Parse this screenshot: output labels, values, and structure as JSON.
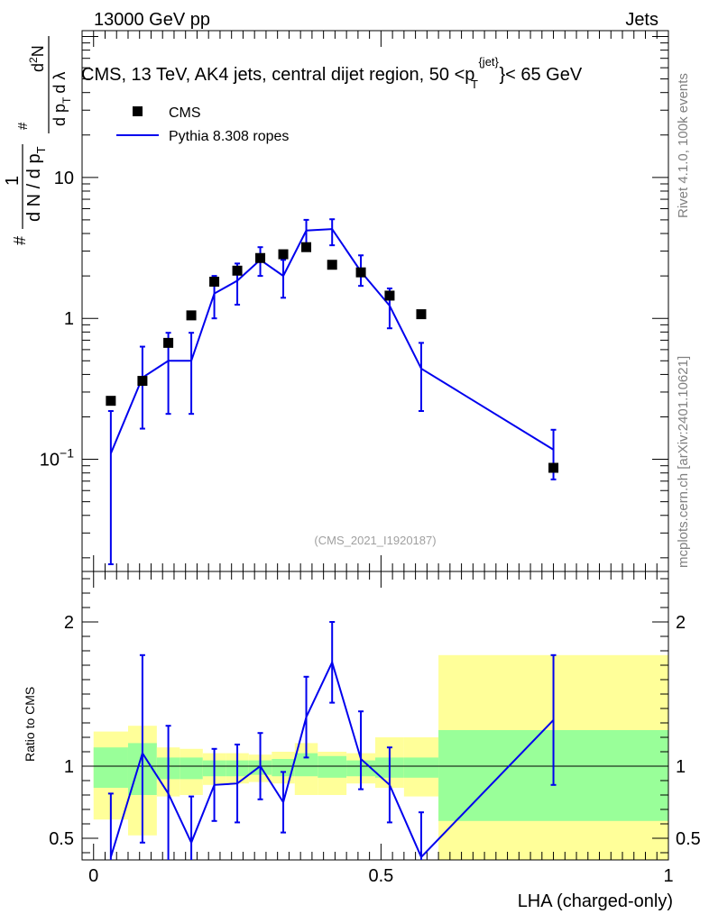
{
  "header": {
    "left": "13000 GeV pp",
    "right": "Jets"
  },
  "side_labels": {
    "rivet": "Rivet 4.1.0,  100k events",
    "mcplots": "mcplots.cern.ch [arXiv:2401.10621]"
  },
  "chart_data": [
    {
      "type": "scatter",
      "title_parts": {
        "prefix": "CMS, 13 TeV, AK4 jets, central dijet region, 50 <p",
        "sup": "{jet}",
        "sub": "T",
        "suffix": "}< 65 GeV"
      },
      "analysis_id": "(CMS_2021_I1920187)",
      "yscale": "log",
      "ylim": [
        0.016,
        110
      ],
      "xlim": [
        -0.02,
        1.0
      ],
      "yticks": [
        {
          "value": 0.1,
          "label": "10",
          "exp": "−1"
        },
        {
          "value": 1,
          "label": "1",
          "exp": ""
        },
        {
          "value": 10,
          "label": "10",
          "exp": ""
        }
      ],
      "ylabel": {
        "hash": "#",
        "frac1_num": "1",
        "frac1_den": "d N / d p",
        "frac1_den_sub": "T",
        "frac2_num_hash": "#",
        "frac2_num": "d",
        "frac2_num_sup": "2",
        "frac2_num_tail": "N",
        "frac2_den": "d p",
        "frac2_den_sub": "T",
        "frac2_den_tail": "d λ"
      },
      "legend": [
        {
          "name": "CMS",
          "marker": "square",
          "color": "#000000"
        },
        {
          "name": "Pythia 8.308 ropes",
          "marker": "line",
          "color": "#0000ee"
        }
      ],
      "series": [
        {
          "name": "CMS",
          "x": [
            0.03,
            0.085,
            0.13,
            0.17,
            0.21,
            0.25,
            0.29,
            0.33,
            0.37,
            0.415,
            0.465,
            0.515,
            0.57,
            0.8
          ],
          "y": [
            0.26,
            0.36,
            0.67,
            1.05,
            1.82,
            2.18,
            2.68,
            2.85,
            3.2,
            2.4,
            2.12,
            1.45,
            1.07,
            0.087
          ]
        },
        {
          "name": "Pythia 8.308 ropes",
          "x": [
            0.03,
            0.085,
            0.13,
            0.17,
            0.21,
            0.25,
            0.29,
            0.33,
            0.37,
            0.415,
            0.465,
            0.515,
            0.57,
            0.8
          ],
          "y": [
            0.11,
            0.38,
            0.5,
            0.5,
            1.5,
            1.85,
            2.6,
            2.0,
            4.2,
            4.3,
            2.15,
            1.23,
            0.44,
            0.117
          ],
          "yerr_lo": [
            0.092,
            0.215,
            0.29,
            0.29,
            0.5,
            0.6,
            0.6,
            0.6,
            1.0,
            1.0,
            0.45,
            0.38,
            0.22,
            0.045
          ],
          "yerr_hi": [
            0.11,
            0.25,
            0.29,
            0.29,
            0.5,
            0.6,
            0.6,
            0.6,
            0.8,
            0.75,
            0.65,
            0.4,
            0.23,
            0.045
          ]
        }
      ]
    },
    {
      "type": "line",
      "ylabel": "Ratio to CMS",
      "xlabel": "LHA (charged-only)",
      "ylim": [
        0.35,
        2.35
      ],
      "xlim": [
        -0.02,
        1.0
      ],
      "xticks": [
        {
          "value": 0,
          "label": "0"
        },
        {
          "value": 0.5,
          "label": "0.5"
        },
        {
          "value": 1,
          "label": "1"
        }
      ],
      "yticks": [
        {
          "value": 0.5,
          "label": "0.5"
        },
        {
          "value": 1,
          "label": "1"
        },
        {
          "value": 2,
          "label": "2"
        }
      ],
      "reference_line": 1,
      "bands": [
        {
          "x0": 0.0,
          "x1": 0.06,
          "stat": [
            0.85,
            1.13
          ],
          "total": [
            0.63,
            1.24
          ]
        },
        {
          "x0": 0.06,
          "x1": 0.11,
          "stat": [
            0.8,
            1.16
          ],
          "total": [
            0.52,
            1.28
          ]
        },
        {
          "x0": 0.11,
          "x1": 0.15,
          "stat": [
            0.91,
            1.06
          ],
          "total": [
            0.79,
            1.13
          ]
        },
        {
          "x0": 0.15,
          "x1": 0.19,
          "stat": [
            0.91,
            1.06
          ],
          "total": [
            0.8,
            1.12
          ]
        },
        {
          "x0": 0.19,
          "x1": 0.23,
          "stat": [
            0.93,
            1.04
          ],
          "total": [
            0.87,
            1.09
          ]
        },
        {
          "x0": 0.23,
          "x1": 0.27,
          "stat": [
            0.93,
            1.04
          ],
          "total": [
            0.88,
            1.09
          ]
        },
        {
          "x0": 0.27,
          "x1": 0.31,
          "stat": [
            0.94,
            1.04
          ],
          "total": [
            0.89,
            1.08
          ]
        },
        {
          "x0": 0.31,
          "x1": 0.35,
          "stat": [
            0.93,
            1.05
          ],
          "total": [
            0.88,
            1.1
          ]
        },
        {
          "x0": 0.35,
          "x1": 0.39,
          "stat": [
            0.93,
            1.09
          ],
          "total": [
            0.8,
            1.16
          ]
        },
        {
          "x0": 0.39,
          "x1": 0.44,
          "stat": [
            0.92,
            1.07
          ],
          "total": [
            0.8,
            1.1
          ]
        },
        {
          "x0": 0.44,
          "x1": 0.49,
          "stat": [
            0.93,
            1.04
          ],
          "total": [
            0.88,
            1.09
          ]
        },
        {
          "x0": 0.49,
          "x1": 0.54,
          "stat": [
            0.92,
            1.06
          ],
          "total": [
            0.85,
            1.2
          ]
        },
        {
          "x0": 0.54,
          "x1": 0.6,
          "stat": [
            0.92,
            1.06
          ],
          "total": [
            0.79,
            1.2
          ]
        },
        {
          "x0": 0.6,
          "x1": 1.0,
          "stat": [
            0.62,
            1.25
          ],
          "total": [
            0.35,
            1.77
          ]
        }
      ],
      "series": [
        {
          "name": "Pythia 8.308 ropes / CMS",
          "x": [
            0.03,
            0.085,
            0.13,
            0.17,
            0.21,
            0.25,
            0.29,
            0.33,
            0.37,
            0.415,
            0.465,
            0.515,
            0.57,
            0.8
          ],
          "y": [
            0.37,
            1.09,
            0.81,
            0.47,
            0.87,
            0.88,
            1.0,
            0.75,
            1.34,
            1.72,
            1.05,
            0.87,
            0.37,
            1.32
          ],
          "yerr_lo": [
            0.37,
            0.62,
            0.47,
            0.32,
            0.25,
            0.27,
            0.23,
            0.21,
            0.28,
            0.28,
            0.21,
            0.26,
            0.31,
            0.45
          ],
          "yerr_hi": [
            0.44,
            0.68,
            0.47,
            0.32,
            0.25,
            0.27,
            0.23,
            0.21,
            0.28,
            0.28,
            0.33,
            0.26,
            0.31,
            0.45
          ]
        }
      ]
    }
  ]
}
